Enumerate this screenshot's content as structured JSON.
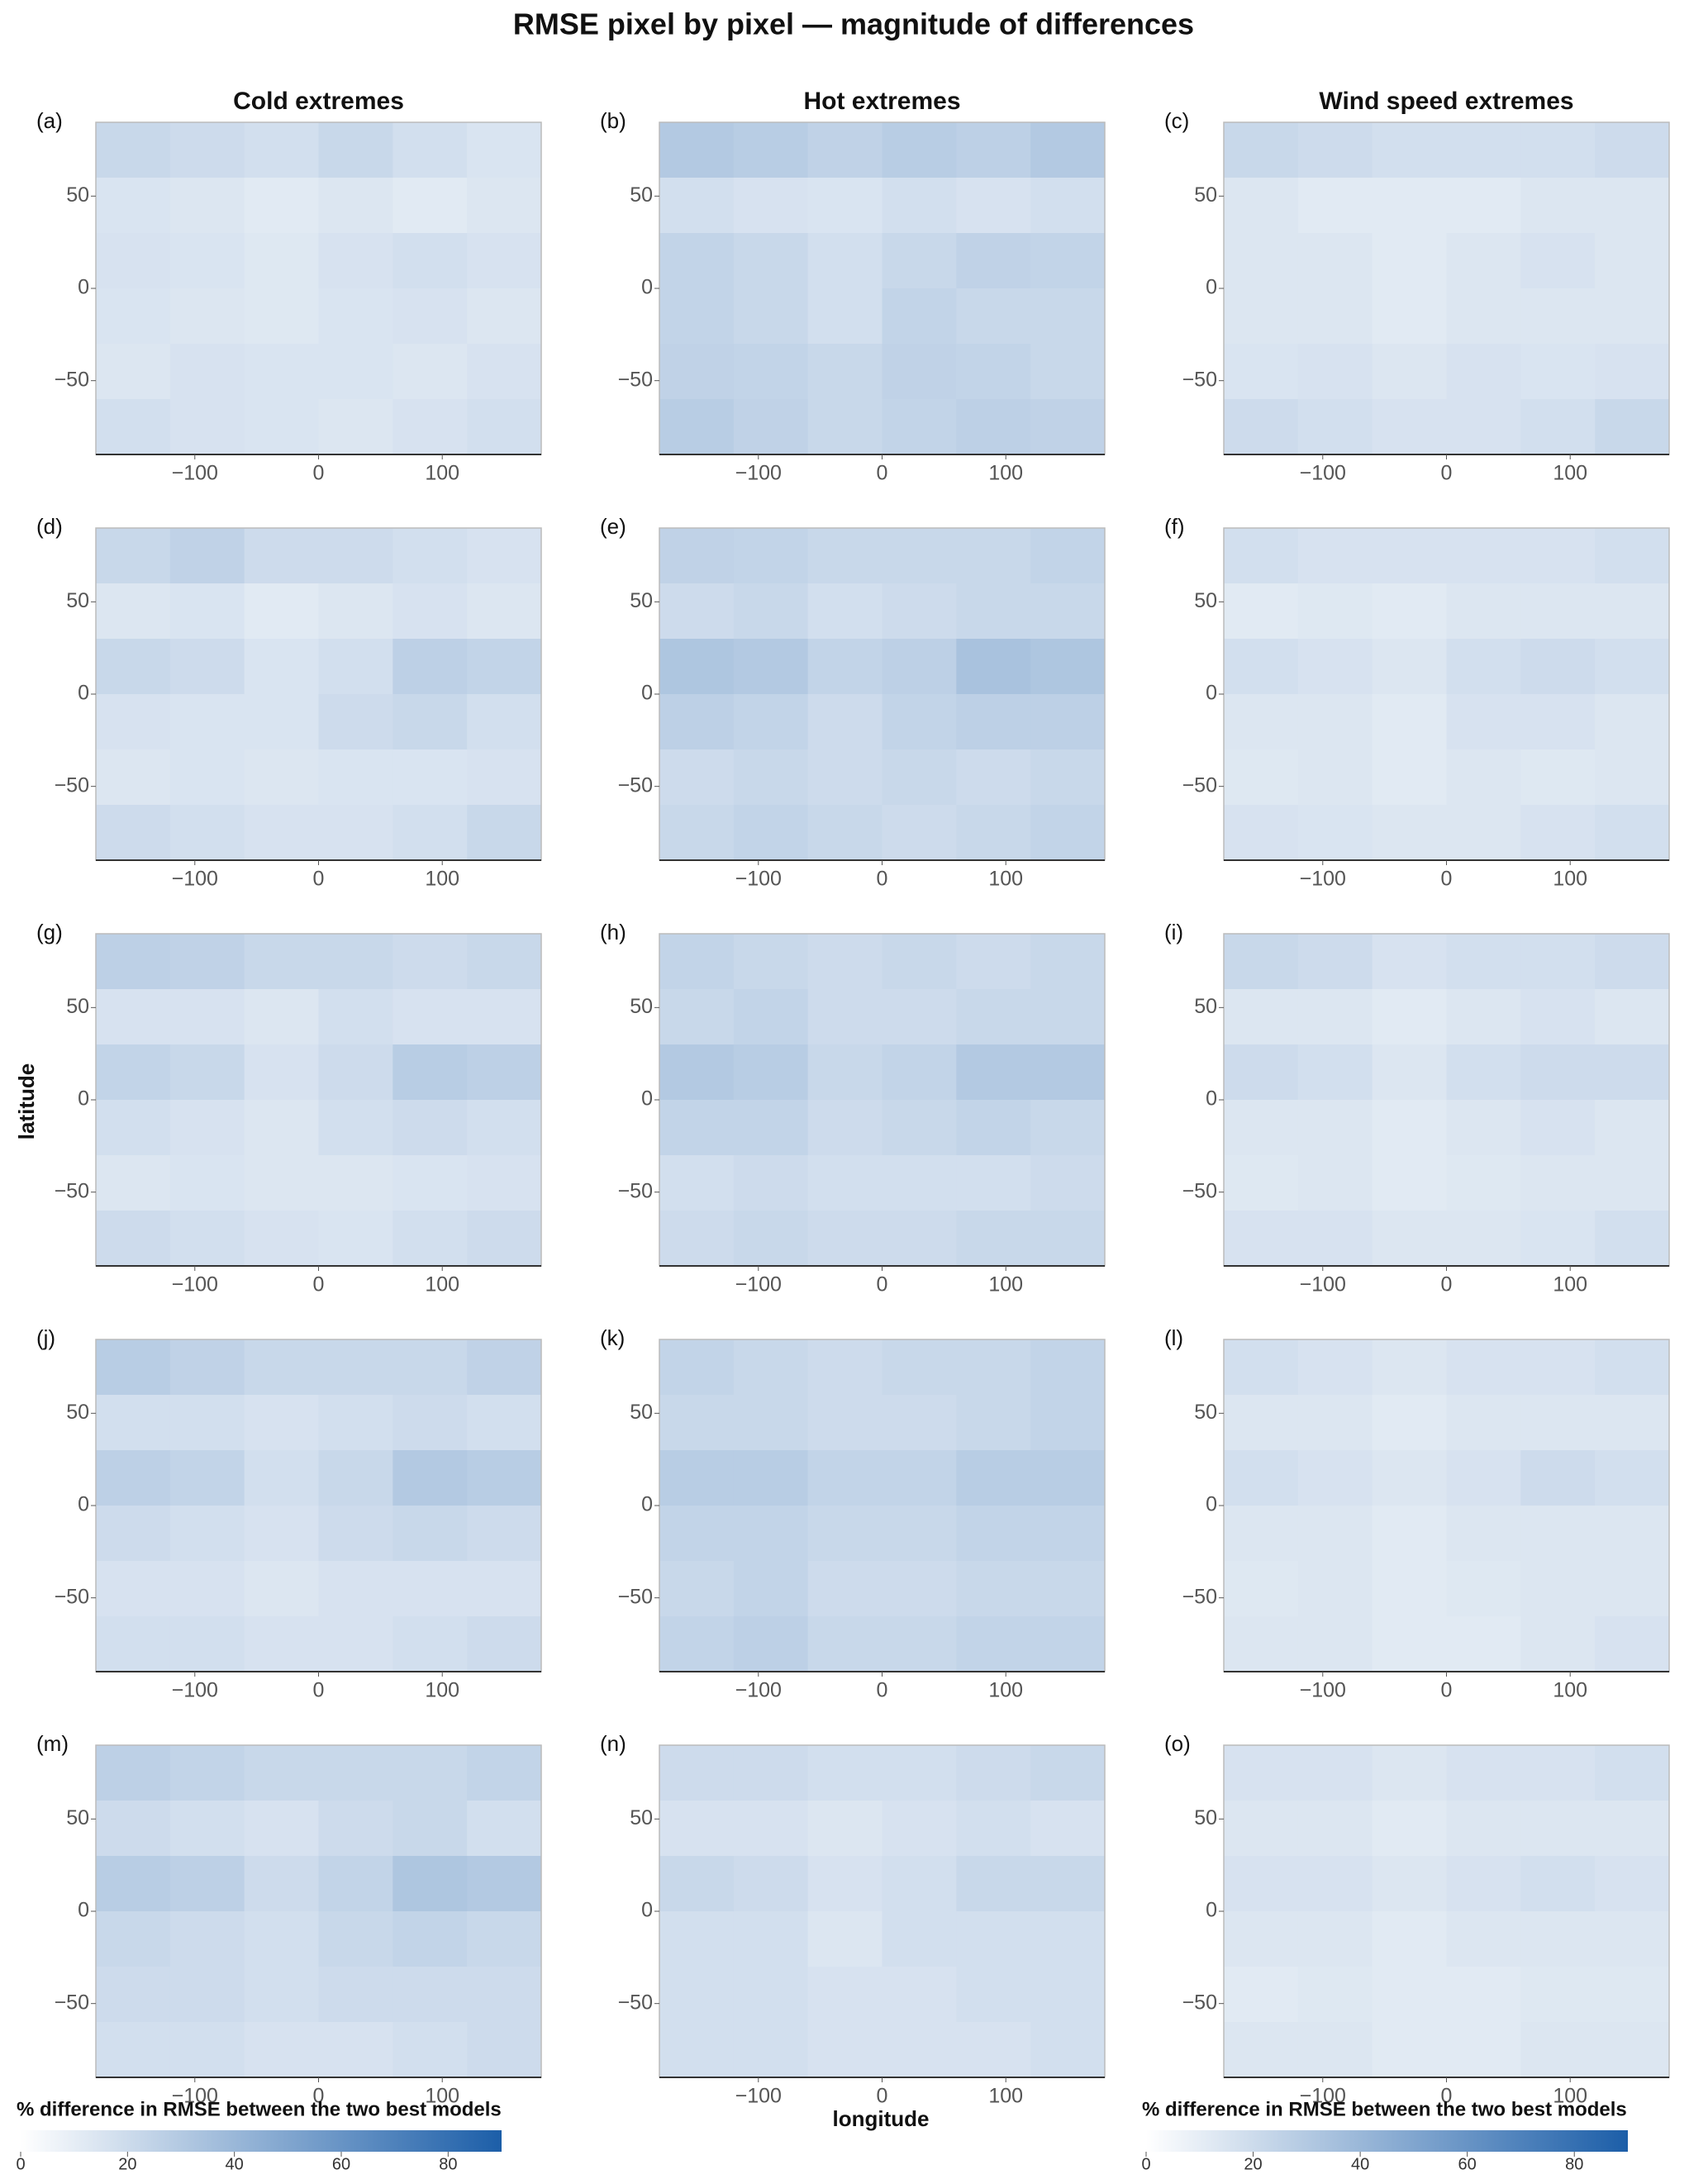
{
  "chart_data": {
    "type": "heatmap",
    "title": "RMSE pixel by pixel — magnitude of differences",
    "column_titles": [
      "Cold extremes",
      "Hot extremes",
      "Wind speed extremes"
    ],
    "xlabel": "longitude",
    "ylabel": "latitude",
    "xlim": [
      -180,
      180
    ],
    "ylim": [
      -90,
      90
    ],
    "xticks": [
      {
        "value": -100,
        "label": "−100"
      },
      0,
      100
    ],
    "yticks": [
      50,
      0,
      {
        "value": -50,
        "label": "−50"
      }
    ],
    "x": [
      -150,
      -90,
      -30,
      30,
      90,
      150
    ],
    "y": [
      75,
      45,
      15,
      -15,
      -45,
      -75
    ],
    "colorscale": [
      "#ffffff",
      "#1c5ea8"
    ],
    "zlim": [
      0,
      90
    ],
    "zticks": [
      0,
      20,
      40,
      60,
      80
    ],
    "colorbar_title": "% difference in RMSE between the two best models",
    "panels": [
      {
        "label": "(a)",
        "z": [
          [
            22,
            20,
            18,
            22,
            18,
            15
          ],
          [
            15,
            14,
            12,
            14,
            12,
            14
          ],
          [
            16,
            15,
            13,
            16,
            18,
            16
          ],
          [
            15,
            14,
            13,
            15,
            16,
            14
          ],
          [
            14,
            16,
            15,
            15,
            14,
            16
          ],
          [
            18,
            16,
            15,
            14,
            16,
            18
          ]
        ]
      },
      {
        "label": "(b)",
        "z": [
          [
            30,
            28,
            25,
            28,
            26,
            30
          ],
          [
            18,
            16,
            15,
            18,
            16,
            18
          ],
          [
            24,
            22,
            18,
            22,
            25,
            24
          ],
          [
            24,
            22,
            18,
            24,
            22,
            22
          ],
          [
            25,
            24,
            22,
            25,
            24,
            22
          ],
          [
            28,
            25,
            22,
            24,
            26,
            25
          ]
        ]
      },
      {
        "label": "(c)",
        "z": [
          [
            22,
            20,
            18,
            18,
            18,
            20
          ],
          [
            14,
            12,
            12,
            12,
            14,
            14
          ],
          [
            14,
            14,
            12,
            14,
            16,
            14
          ],
          [
            14,
            14,
            12,
            14,
            14,
            14
          ],
          [
            15,
            16,
            14,
            16,
            15,
            16
          ],
          [
            20,
            18,
            16,
            16,
            18,
            22
          ]
        ]
      },
      {
        "label": "(d)",
        "z": [
          [
            22,
            25,
            20,
            20,
            18,
            16
          ],
          [
            14,
            15,
            12,
            14,
            16,
            14
          ],
          [
            22,
            20,
            15,
            18,
            26,
            24
          ],
          [
            16,
            15,
            15,
            20,
            22,
            18
          ],
          [
            14,
            15,
            14,
            15,
            15,
            16
          ],
          [
            20,
            18,
            16,
            16,
            18,
            22
          ]
        ]
      },
      {
        "label": "(e)",
        "z": [
          [
            25,
            24,
            22,
            22,
            22,
            24
          ],
          [
            20,
            22,
            18,
            20,
            22,
            22
          ],
          [
            32,
            30,
            24,
            26,
            34,
            32
          ],
          [
            26,
            24,
            20,
            24,
            26,
            26
          ],
          [
            20,
            22,
            20,
            22,
            20,
            22
          ],
          [
            22,
            24,
            22,
            20,
            22,
            24
          ]
        ]
      },
      {
        "label": "(f)",
        "z": [
          [
            18,
            16,
            16,
            16,
            16,
            18
          ],
          [
            12,
            13,
            12,
            14,
            14,
            14
          ],
          [
            18,
            16,
            14,
            18,
            20,
            18
          ],
          [
            14,
            14,
            12,
            16,
            16,
            14
          ],
          [
            13,
            14,
            12,
            14,
            13,
            14
          ],
          [
            16,
            15,
            14,
            14,
            16,
            18
          ]
        ]
      },
      {
        "label": "(g)",
        "z": [
          [
            26,
            25,
            22,
            22,
            20,
            22
          ],
          [
            16,
            16,
            14,
            18,
            16,
            16
          ],
          [
            24,
            22,
            16,
            20,
            28,
            26
          ],
          [
            18,
            16,
            14,
            18,
            20,
            18
          ],
          [
            14,
            15,
            14,
            14,
            15,
            16
          ],
          [
            20,
            18,
            16,
            15,
            18,
            20
          ]
        ]
      },
      {
        "label": "(h)",
        "z": [
          [
            24,
            22,
            20,
            22,
            20,
            22
          ],
          [
            22,
            24,
            20,
            20,
            22,
            22
          ],
          [
            30,
            28,
            22,
            24,
            30,
            30
          ],
          [
            24,
            24,
            20,
            22,
            24,
            22
          ],
          [
            18,
            20,
            18,
            18,
            18,
            20
          ],
          [
            20,
            22,
            20,
            20,
            22,
            22
          ]
        ]
      },
      {
        "label": "(i)",
        "z": [
          [
            22,
            20,
            16,
            18,
            18,
            20
          ],
          [
            14,
            14,
            12,
            14,
            16,
            14
          ],
          [
            20,
            18,
            14,
            18,
            20,
            20
          ],
          [
            14,
            14,
            12,
            14,
            16,
            14
          ],
          [
            13,
            14,
            12,
            13,
            14,
            14
          ],
          [
            16,
            16,
            14,
            14,
            15,
            18
          ]
        ]
      },
      {
        "label": "(j)",
        "z": [
          [
            28,
            25,
            22,
            22,
            22,
            25
          ],
          [
            18,
            18,
            16,
            18,
            20,
            18
          ],
          [
            26,
            24,
            18,
            22,
            30,
            28
          ],
          [
            20,
            18,
            16,
            20,
            22,
            20
          ],
          [
            16,
            16,
            14,
            16,
            16,
            16
          ],
          [
            18,
            18,
            16,
            16,
            18,
            20
          ]
        ]
      },
      {
        "label": "(k)",
        "z": [
          [
            24,
            22,
            20,
            22,
            22,
            24
          ],
          [
            22,
            22,
            20,
            20,
            22,
            24
          ],
          [
            28,
            28,
            24,
            24,
            28,
            28
          ],
          [
            24,
            24,
            22,
            22,
            24,
            24
          ],
          [
            22,
            24,
            20,
            20,
            22,
            22
          ],
          [
            24,
            26,
            22,
            22,
            24,
            24
          ]
        ]
      },
      {
        "label": "(l)",
        "z": [
          [
            18,
            16,
            14,
            16,
            16,
            18
          ],
          [
            14,
            14,
            12,
            14,
            14,
            14
          ],
          [
            18,
            16,
            14,
            16,
            20,
            18
          ],
          [
            14,
            14,
            12,
            14,
            14,
            14
          ],
          [
            13,
            14,
            12,
            13,
            14,
            14
          ],
          [
            14,
            14,
            12,
            12,
            14,
            16
          ]
        ]
      },
      {
        "label": "(m)",
        "z": [
          [
            26,
            24,
            22,
            22,
            22,
            24
          ],
          [
            20,
            18,
            16,
            20,
            22,
            18
          ],
          [
            28,
            26,
            20,
            24,
            32,
            30
          ],
          [
            22,
            20,
            18,
            22,
            24,
            22
          ],
          [
            20,
            20,
            18,
            20,
            20,
            20
          ],
          [
            18,
            18,
            16,
            16,
            18,
            20
          ]
        ]
      },
      {
        "label": "(n)",
        "z": [
          [
            20,
            20,
            18,
            18,
            20,
            22
          ],
          [
            16,
            16,
            14,
            16,
            18,
            16
          ],
          [
            22,
            20,
            16,
            18,
            22,
            22
          ],
          [
            18,
            18,
            14,
            18,
            18,
            18
          ],
          [
            18,
            18,
            16,
            16,
            18,
            18
          ],
          [
            18,
            18,
            16,
            16,
            16,
            18
          ]
        ]
      },
      {
        "label": "(o)",
        "z": [
          [
            16,
            16,
            14,
            16,
            16,
            18
          ],
          [
            14,
            14,
            12,
            14,
            14,
            14
          ],
          [
            16,
            16,
            14,
            16,
            18,
            16
          ],
          [
            14,
            14,
            12,
            14,
            14,
            14
          ],
          [
            12,
            13,
            12,
            12,
            13,
            13
          ],
          [
            14,
            14,
            12,
            12,
            14,
            14
          ]
        ]
      }
    ]
  }
}
